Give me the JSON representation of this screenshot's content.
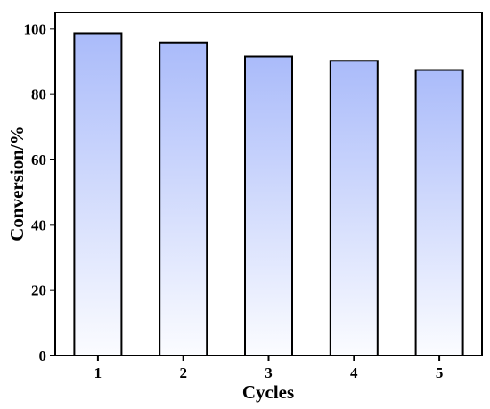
{
  "chart_data": {
    "type": "bar",
    "title": "",
    "xlabel": "Cycles",
    "ylabel": "Conversion/%",
    "categories": [
      "1",
      "2",
      "3",
      "4",
      "5"
    ],
    "values": [
      98.6,
      95.8,
      91.5,
      90.2,
      87.4
    ],
    "ylim": [
      0,
      105
    ],
    "yticks": [
      "0",
      "20",
      "40",
      "60",
      "80",
      "100"
    ],
    "grid": false,
    "legend": "none",
    "colors": {
      "bar_top": "#aabbfa",
      "bar_bottom": "#fbfcff",
      "bar_stroke": "#000000",
      "axis": "#000000"
    }
  }
}
